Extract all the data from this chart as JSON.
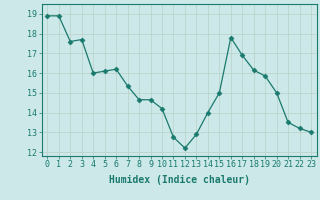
{
  "x": [
    0,
    1,
    2,
    3,
    4,
    5,
    6,
    7,
    8,
    9,
    10,
    11,
    12,
    13,
    14,
    15,
    16,
    17,
    18,
    19,
    20,
    21,
    22,
    23
  ],
  "y": [
    18.9,
    18.9,
    17.6,
    17.7,
    16.0,
    16.1,
    16.2,
    15.35,
    14.65,
    14.65,
    14.2,
    12.75,
    12.2,
    12.9,
    14.0,
    15.0,
    17.8,
    16.9,
    16.15,
    15.85,
    15.0,
    13.5,
    13.2,
    13.0
  ],
  "line_color": "#1a7a6e",
  "marker": "D",
  "marker_size": 2.5,
  "bg_color": "#cce8e8",
  "grid_color": "#b8d0c8",
  "xlabel": "Humidex (Indice chaleur)",
  "xlim": [
    -0.5,
    23.5
  ],
  "ylim": [
    11.8,
    19.5
  ],
  "yticks": [
    12,
    13,
    14,
    15,
    16,
    17,
    18,
    19
  ],
  "xticks": [
    0,
    1,
    2,
    3,
    4,
    5,
    6,
    7,
    8,
    9,
    10,
    11,
    12,
    13,
    14,
    15,
    16,
    17,
    18,
    19,
    20,
    21,
    22,
    23
  ],
  "xtick_labels": [
    "0",
    "1",
    "2",
    "3",
    "4",
    "5",
    "6",
    "7",
    "8",
    "9",
    "10",
    "11",
    "12",
    "13",
    "14",
    "15",
    "16",
    "17",
    "18",
    "19",
    "20",
    "21",
    "22",
    "23"
  ],
  "tick_color": "#1a7a6e",
  "label_fontsize": 7,
  "tick_fontsize": 6,
  "spine_color": "#1a7a6e"
}
